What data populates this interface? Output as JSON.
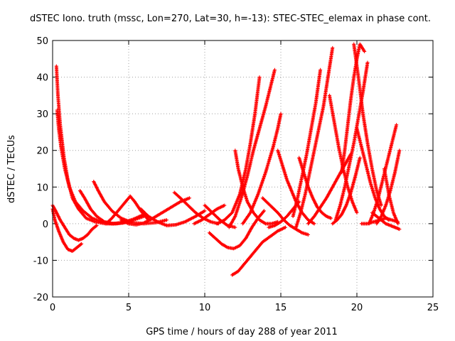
{
  "chart_data": {
    "type": "scatter",
    "title": "dSTEC Iono. truth (mssc, Lon=270, Lat=30, h=-13): STEC-STEC_elemax in phase cont.",
    "xlabel": "GPS time / hours of day 288 of year 2011",
    "ylabel": "dSTEC  / TECUs",
    "xlim": [
      0,
      25
    ],
    "ylim": [
      -20,
      50
    ],
    "x_ticks": [
      0,
      5,
      10,
      15,
      20,
      25
    ],
    "y_ticks": [
      -20,
      -10,
      0,
      10,
      20,
      30,
      40,
      50
    ],
    "x_tick_labels": [
      "0",
      "5",
      "10",
      "15",
      "20",
      "25"
    ],
    "y_tick_labels": [
      "-20",
      "-10",
      "0",
      "10",
      "20",
      "30",
      "40",
      "50"
    ],
    "grid": true,
    "marker": "+",
    "color": "#ff0000",
    "series": [
      {
        "x": [
          0.25,
          0.35,
          0.5,
          0.75,
          1.0,
          1.3,
          1.7,
          2.2,
          2.8,
          3.5,
          4.2,
          5.0
        ],
        "y": [
          43,
          35,
          27,
          18,
          12,
          7,
          4,
          1.5,
          0.5,
          0,
          0,
          0.5
        ]
      },
      {
        "x": [
          0.3,
          0.4,
          0.55,
          0.8,
          1.1,
          1.5,
          2.0,
          2.6,
          3.2,
          3.9,
          4.6,
          5.3,
          6.0
        ],
        "y": [
          31,
          26,
          21,
          15,
          10,
          6,
          3.5,
          1.5,
          0.5,
          0,
          0.2,
          1,
          2
        ]
      },
      {
        "x": [
          0.0,
          0.15,
          0.4,
          0.7,
          1.0,
          1.3,
          1.6,
          1.9
        ],
        "y": [
          4,
          1,
          -2,
          -5,
          -7,
          -7.5,
          -6.5,
          -5.5
        ]
      },
      {
        "x": [
          0.0,
          0.2,
          0.5,
          0.8,
          1.1,
          1.4,
          1.7,
          2.0,
          2.3,
          2.6,
          2.9
        ],
        "y": [
          5,
          3.5,
          1,
          -1,
          -3,
          -4,
          -4.5,
          -4,
          -3,
          -1.5,
          -0.5
        ]
      },
      {
        "x": [
          1.8,
          2.1,
          2.5,
          2.9,
          3.4,
          4.0,
          4.6,
          5.3,
          6.0
        ],
        "y": [
          9,
          7,
          4,
          2,
          0.5,
          0,
          0.3,
          1.2,
          2.5
        ]
      },
      {
        "x": [
          2.7,
          3.0,
          3.4,
          3.9,
          4.5,
          5.2,
          6.0,
          6.8,
          7.5
        ],
        "y": [
          11.5,
          9,
          6,
          3.5,
          1.5,
          0.3,
          0,
          0.3,
          1
        ]
      },
      {
        "x": [
          3.5,
          3.9,
          4.4,
          4.8,
          5.1,
          5.4,
          5.8,
          6.3
        ],
        "y": [
          0,
          1.5,
          4,
          6,
          7.5,
          6,
          3.5,
          1
        ]
      },
      {
        "x": [
          4.5,
          5.0,
          5.5,
          6.0,
          6.6,
          7.2,
          7.8,
          8.4,
          9.0
        ],
        "y": [
          1,
          0,
          -0.3,
          0.2,
          1.5,
          3,
          4.5,
          6,
          7
        ]
      },
      {
        "x": [
          5.8,
          6.3,
          6.9,
          7.5,
          8.1,
          8.7,
          9.4,
          10.0
        ],
        "y": [
          4,
          2,
          0.5,
          -0.5,
          -0.3,
          0.5,
          2,
          3.5
        ]
      },
      {
        "x": [
          8.0,
          8.4,
          8.9,
          9.4,
          9.9,
          10.4,
          10.9
        ],
        "y": [
          8.5,
          7,
          5,
          3,
          1.5,
          0.5,
          0
        ]
      },
      {
        "x": [
          9.3,
          9.8,
          10.3,
          10.8,
          11.3
        ],
        "y": [
          0,
          1,
          2.5,
          4,
          5
        ]
      },
      {
        "x": [
          10.0,
          10.5,
          11.0,
          11.5,
          12.0
        ],
        "y": [
          5,
          3,
          1,
          -0.5,
          -1
        ]
      },
      {
        "x": [
          10.3,
          10.7,
          11.1,
          11.5,
          11.9,
          12.3,
          12.7,
          13.1,
          13.5,
          13.9
        ],
        "y": [
          -2.5,
          -4,
          -5.5,
          -6.5,
          -6.8,
          -6,
          -4,
          -1,
          1.5,
          3.5
        ]
      },
      {
        "x": [
          11.8,
          12.2,
          12.6,
          13.0,
          13.4,
          13.8,
          14.3,
          14.8,
          15.3
        ],
        "y": [
          -14,
          -13,
          -11,
          -9,
          -7,
          -5,
          -3.5,
          -2,
          -1
        ]
      },
      {
        "x": [
          10.8,
          11.3,
          11.8,
          12.3,
          12.7,
          13.0,
          13.3,
          13.6
        ],
        "y": [
          0,
          1,
          3,
          8,
          15,
          22,
          30,
          40
        ]
      },
      {
        "x": [
          11.6,
          12.0,
          12.4,
          12.8,
          13.2,
          13.6,
          14.0,
          14.3,
          14.6
        ],
        "y": [
          -1,
          2,
          7,
          13,
          20,
          26,
          32,
          37,
          42
        ]
      },
      {
        "x": [
          12.5,
          13.0,
          13.5,
          14.0,
          14.5,
          14.8,
          15.0
        ],
        "y": [
          0,
          3,
          8,
          14,
          21,
          26,
          30
        ]
      },
      {
        "x": [
          12.0,
          12.2,
          12.5,
          12.8,
          13.2,
          13.6,
          14.0,
          14.4,
          14.8
        ],
        "y": [
          20,
          15,
          10,
          6,
          3,
          1,
          0,
          0,
          0.5
        ]
      },
      {
        "x": [
          13.8,
          14.3,
          14.8,
          15.2,
          15.6,
          16.0,
          16.4,
          16.8
        ],
        "y": [
          7,
          5,
          3,
          1,
          -0.5,
          -1.5,
          -2.5,
          -3
        ]
      },
      {
        "x": [
          14.2,
          14.6,
          15.0,
          15.4,
          15.8,
          16.2
        ],
        "y": [
          -1,
          -0.5,
          0.5,
          2,
          4,
          6
        ]
      },
      {
        "x": [
          14.8,
          15.1,
          15.4,
          15.7,
          16.0,
          16.4,
          16.8,
          17.2
        ],
        "y": [
          20,
          16,
          12,
          9,
          6,
          3,
          1,
          0
        ]
      },
      {
        "x": [
          15.8,
          16.1,
          16.4,
          16.7,
          17.0,
          17.3,
          17.6
        ],
        "y": [
          2,
          7,
          13,
          19,
          26,
          33,
          42
        ]
      },
      {
        "x": [
          16.0,
          16.3,
          16.6,
          16.9,
          17.2,
          17.5,
          17.8,
          18.1,
          18.4
        ],
        "y": [
          -1,
          3,
          8,
          14,
          20,
          26,
          32,
          40,
          48
        ]
      },
      {
        "x": [
          16.2,
          16.5,
          16.8,
          17.1,
          17.4,
          17.7,
          18.0,
          18.3
        ],
        "y": [
          18,
          14,
          10,
          7,
          4.5,
          3,
          2,
          1.5
        ]
      },
      {
        "x": [
          16.8,
          17.2,
          17.6,
          18.0,
          18.4,
          18.8,
          19.2,
          19.6
        ],
        "y": [
          0,
          2,
          4.5,
          7,
          10,
          13,
          16,
          19
        ]
      },
      {
        "x": [
          18.2,
          18.5,
          18.8,
          19.1,
          19.4,
          19.7,
          20.0
        ],
        "y": [
          35,
          28,
          21,
          15,
          10,
          6,
          3
        ]
      },
      {
        "x": [
          18.6,
          18.9,
          19.2,
          19.5,
          19.8,
          20.1,
          20.4,
          20.7
        ],
        "y": [
          1,
          5,
          10,
          16,
          22,
          29,
          36,
          44
        ]
      },
      {
        "x": [
          19.0,
          19.2,
          19.4,
          19.6,
          19.8,
          20.0,
          20.2,
          20.5
        ],
        "y": [
          14,
          20,
          27,
          34,
          40,
          45,
          49,
          47
        ]
      },
      {
        "x": [
          18.4,
          18.7,
          19.0,
          19.3,
          19.6,
          19.9,
          20.2
        ],
        "y": [
          0,
          1,
          2.5,
          5,
          8.5,
          13,
          18
        ]
      },
      {
        "x": [
          19.8,
          20.1,
          20.4,
          20.7,
          21.0,
          21.3,
          21.6
        ],
        "y": [
          49,
          40,
          30,
          22,
          15,
          9,
          5
        ]
      },
      {
        "x": [
          20.0,
          20.3,
          20.6,
          20.9,
          21.2,
          21.5,
          21.8,
          22.1
        ],
        "y": [
          26,
          21,
          16,
          11,
          7,
          4,
          2,
          1
        ]
      },
      {
        "x": [
          20.3,
          20.7,
          21.1,
          21.5,
          21.9,
          22.3,
          22.7
        ],
        "y": [
          0,
          0,
          0.5,
          1,
          1.5,
          1,
          0.5
        ]
      },
      {
        "x": [
          20.8,
          21.1,
          21.4,
          21.7,
          22.0,
          22.3,
          22.6
        ],
        "y": [
          0,
          3,
          7,
          12,
          17,
          22,
          27
        ]
      },
      {
        "x": [
          21.0,
          21.3,
          21.6,
          21.9,
          22.2,
          22.5,
          22.8
        ],
        "y": [
          3,
          2,
          1,
          0,
          -0.5,
          -1,
          -1.5
        ]
      },
      {
        "x": [
          21.3,
          21.6,
          21.9,
          22.2,
          22.5,
          22.8
        ],
        "y": [
          0,
          2,
          5,
          9,
          14,
          20
        ]
      },
      {
        "x": [
          21.8,
          22.1,
          22.4,
          22.7
        ],
        "y": [
          15,
          8,
          3,
          0
        ]
      }
    ]
  }
}
